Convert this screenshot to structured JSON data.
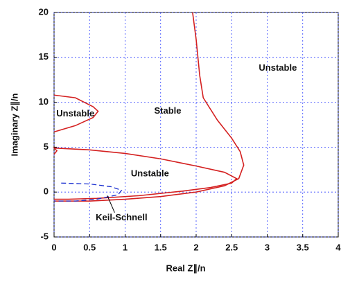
{
  "chart_data": {
    "type": "line",
    "xlabel": "Real Z∥/n",
    "ylabel": "Imaginary Z∥/n",
    "xlim": [
      0,
      4
    ],
    "ylim": [
      -5,
      20
    ],
    "xticks": [
      0,
      0.5,
      1,
      1.5,
      2,
      2.5,
      3,
      3.5,
      4
    ],
    "yticks": [
      -5,
      0,
      5,
      10,
      15,
      20
    ],
    "grid": true,
    "series": [
      {
        "color": "#d42020",
        "dashed": false,
        "x": [
          1.95,
          2.0,
          2.05,
          2.1,
          2.3,
          2.5,
          2.62,
          2.67,
          2.6,
          2.4,
          2.0,
          1.5,
          1.0,
          0.5,
          0
        ],
        "values": [
          20,
          17,
          13,
          10.5,
          8,
          6,
          4.5,
          3,
          1.5,
          0.7,
          0,
          -0.5,
          -0.8,
          -1.0,
          -1.0
        ]
      },
      {
        "color": "#d42020",
        "dashed": false,
        "x": [
          0,
          0.04,
          0,
          0.5,
          1.0,
          1.5,
          2.0,
          2.4,
          2.57,
          2.5,
          2.2,
          1.8,
          1.2,
          0.6,
          0.2,
          0
        ],
        "values": [
          4.2,
          4.6,
          4.9,
          4.7,
          4.3,
          3.7,
          2.9,
          2.2,
          1.5,
          1.0,
          0.5,
          0.1,
          -0.4,
          -0.7,
          -0.8,
          -0.8
        ]
      },
      {
        "color": "#d42020",
        "dashed": false,
        "x": [
          0,
          0.3,
          0.55,
          0.62,
          0.55,
          0.3,
          0
        ],
        "values": [
          10.8,
          10.5,
          9.5,
          9,
          8.3,
          7.4,
          6.7
        ]
      },
      {
        "color": "#1a2fd0",
        "dashed": true,
        "x": [
          0.1,
          0.5,
          0.8,
          0.95,
          0.9,
          0.6,
          0.3,
          0
        ],
        "values": [
          1.0,
          0.9,
          0.6,
          0.2,
          -0.3,
          -0.8,
          -1.0,
          -1.0
        ]
      }
    ],
    "annotations": [
      {
        "text": "Unstable",
        "x": 3.15,
        "y": 13.8
      },
      {
        "text": "Stable",
        "x": 1.6,
        "y": 9
      },
      {
        "text": "Unstable",
        "x": 0.3,
        "y": 8.7
      },
      {
        "text": "Unstable",
        "x": 1.35,
        "y": 2
      },
      {
        "text": "Keil-Schnell",
        "x": 0.95,
        "y": -2.9,
        "xy": [
          0.75,
          -0.4
        ]
      }
    ]
  }
}
